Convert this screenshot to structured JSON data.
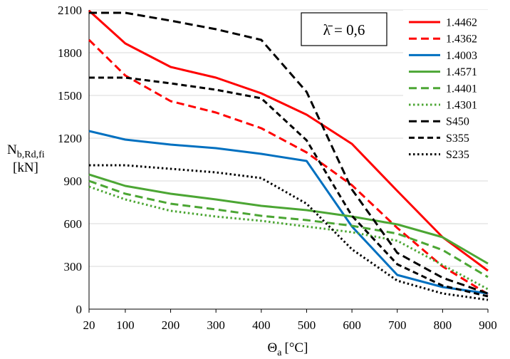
{
  "chart_data": {
    "type": "line",
    "title": "",
    "annotation": "λ̄ = 0,6",
    "xlabel": "Θ",
    "xlabel_sub": "a",
    "xlabel_unit": "[°C]",
    "ylabel": "N",
    "ylabel_sub": "b,Rd,fi",
    "ylabel_unit": "[kN]",
    "x": [
      20,
      100,
      200,
      300,
      400,
      500,
      600,
      700,
      800,
      900
    ],
    "xlim": [
      20,
      900
    ],
    "ylim": [
      0,
      2100
    ],
    "yticks": [
      0,
      300,
      600,
      900,
      1200,
      1500,
      1800,
      2100
    ],
    "grid": "horizontal",
    "legend_position": "top-right",
    "series": [
      {
        "name": "1.4462",
        "color": "#ff0000",
        "dash": "solid",
        "values": [
          2095,
          1865,
          1700,
          1625,
          1515,
          1365,
          1160,
          830,
          505,
          270
        ]
      },
      {
        "name": "1.4362",
        "color": "#ff0000",
        "dash": "dashed",
        "values": [
          1890,
          1640,
          1460,
          1380,
          1270,
          1100,
          870,
          570,
          300,
          105
        ]
      },
      {
        "name": "1.4003",
        "color": "#0070c0",
        "dash": "solid",
        "values": [
          1250,
          1190,
          1155,
          1130,
          1090,
          1040,
          580,
          240,
          155,
          110
        ]
      },
      {
        "name": "1.4571",
        "color": "#4ca634",
        "dash": "solid",
        "values": [
          945,
          865,
          810,
          770,
          725,
          695,
          650,
          595,
          505,
          320
        ]
      },
      {
        "name": "1.4401",
        "color": "#4ca634",
        "dash": "dashed",
        "values": [
          900,
          810,
          740,
          700,
          655,
          625,
          585,
          530,
          415,
          225
        ]
      },
      {
        "name": "1.4301",
        "color": "#4ca634",
        "dash": "dotted",
        "values": [
          860,
          770,
          690,
          650,
          620,
          580,
          540,
          480,
          310,
          140
        ]
      },
      {
        "name": "S450",
        "color": "#000000",
        "dash": "dashed",
        "values": [
          2080,
          2080,
          2025,
          1965,
          1890,
          1525,
          840,
          395,
          220,
          110
        ]
      },
      {
        "name": "S355",
        "color": "#000000",
        "dash": "dashed-short",
        "values": [
          1625,
          1625,
          1585,
          1540,
          1480,
          1185,
          655,
          315,
          165,
          90
        ]
      },
      {
        "name": "S235",
        "color": "#000000",
        "dash": "dotted",
        "values": [
          1010,
          1010,
          985,
          960,
          920,
          740,
          420,
          200,
          110,
          65
        ]
      }
    ]
  }
}
